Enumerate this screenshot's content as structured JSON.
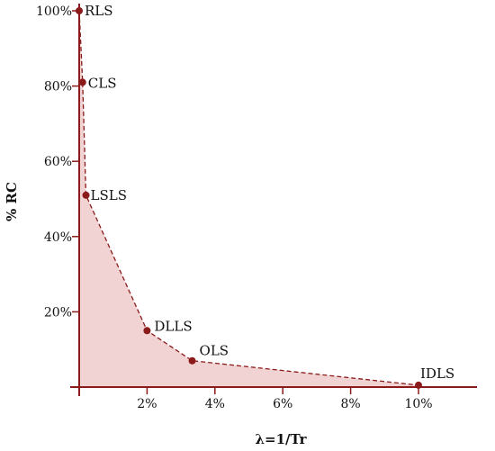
{
  "chart_data": {
    "type": "area",
    "xlabel": "λ=1/Tr",
    "ylabel": "% RC",
    "xlim": [
      0,
      12
    ],
    "ylim": [
      0,
      100
    ],
    "x_ticks": [
      {
        "value": 2,
        "label": "2%"
      },
      {
        "value": 4,
        "label": "4%"
      },
      {
        "value": 6,
        "label": "6%"
      },
      {
        "value": 8,
        "label": "8%"
      },
      {
        "value": 10,
        "label": "10%"
      }
    ],
    "y_ticks": [
      {
        "value": 20,
        "label": "20%"
      },
      {
        "value": 40,
        "label": "40%"
      },
      {
        "value": 60,
        "label": "60%"
      },
      {
        "value": 80,
        "label": "80%"
      },
      {
        "value": 100,
        "label": "100%"
      }
    ],
    "points": [
      {
        "label": "RLS",
        "x": 0.0,
        "y": 100
      },
      {
        "label": "CLS",
        "x": 0.1,
        "y": 81
      },
      {
        "label": "LSLS",
        "x": 0.2,
        "y": 51
      },
      {
        "label": "DLLS",
        "x": 2.0,
        "y": 15
      },
      {
        "label": "OLS",
        "x": 3.33,
        "y": 7
      },
      {
        "label": "IDLS",
        "x": 10.0,
        "y": 0.5
      }
    ],
    "colors": {
      "axis": "#8b1a1a",
      "line": "#8b1a1a",
      "point": "#8b1a1a",
      "fill": "#f2d3d3"
    },
    "grid": false
  }
}
